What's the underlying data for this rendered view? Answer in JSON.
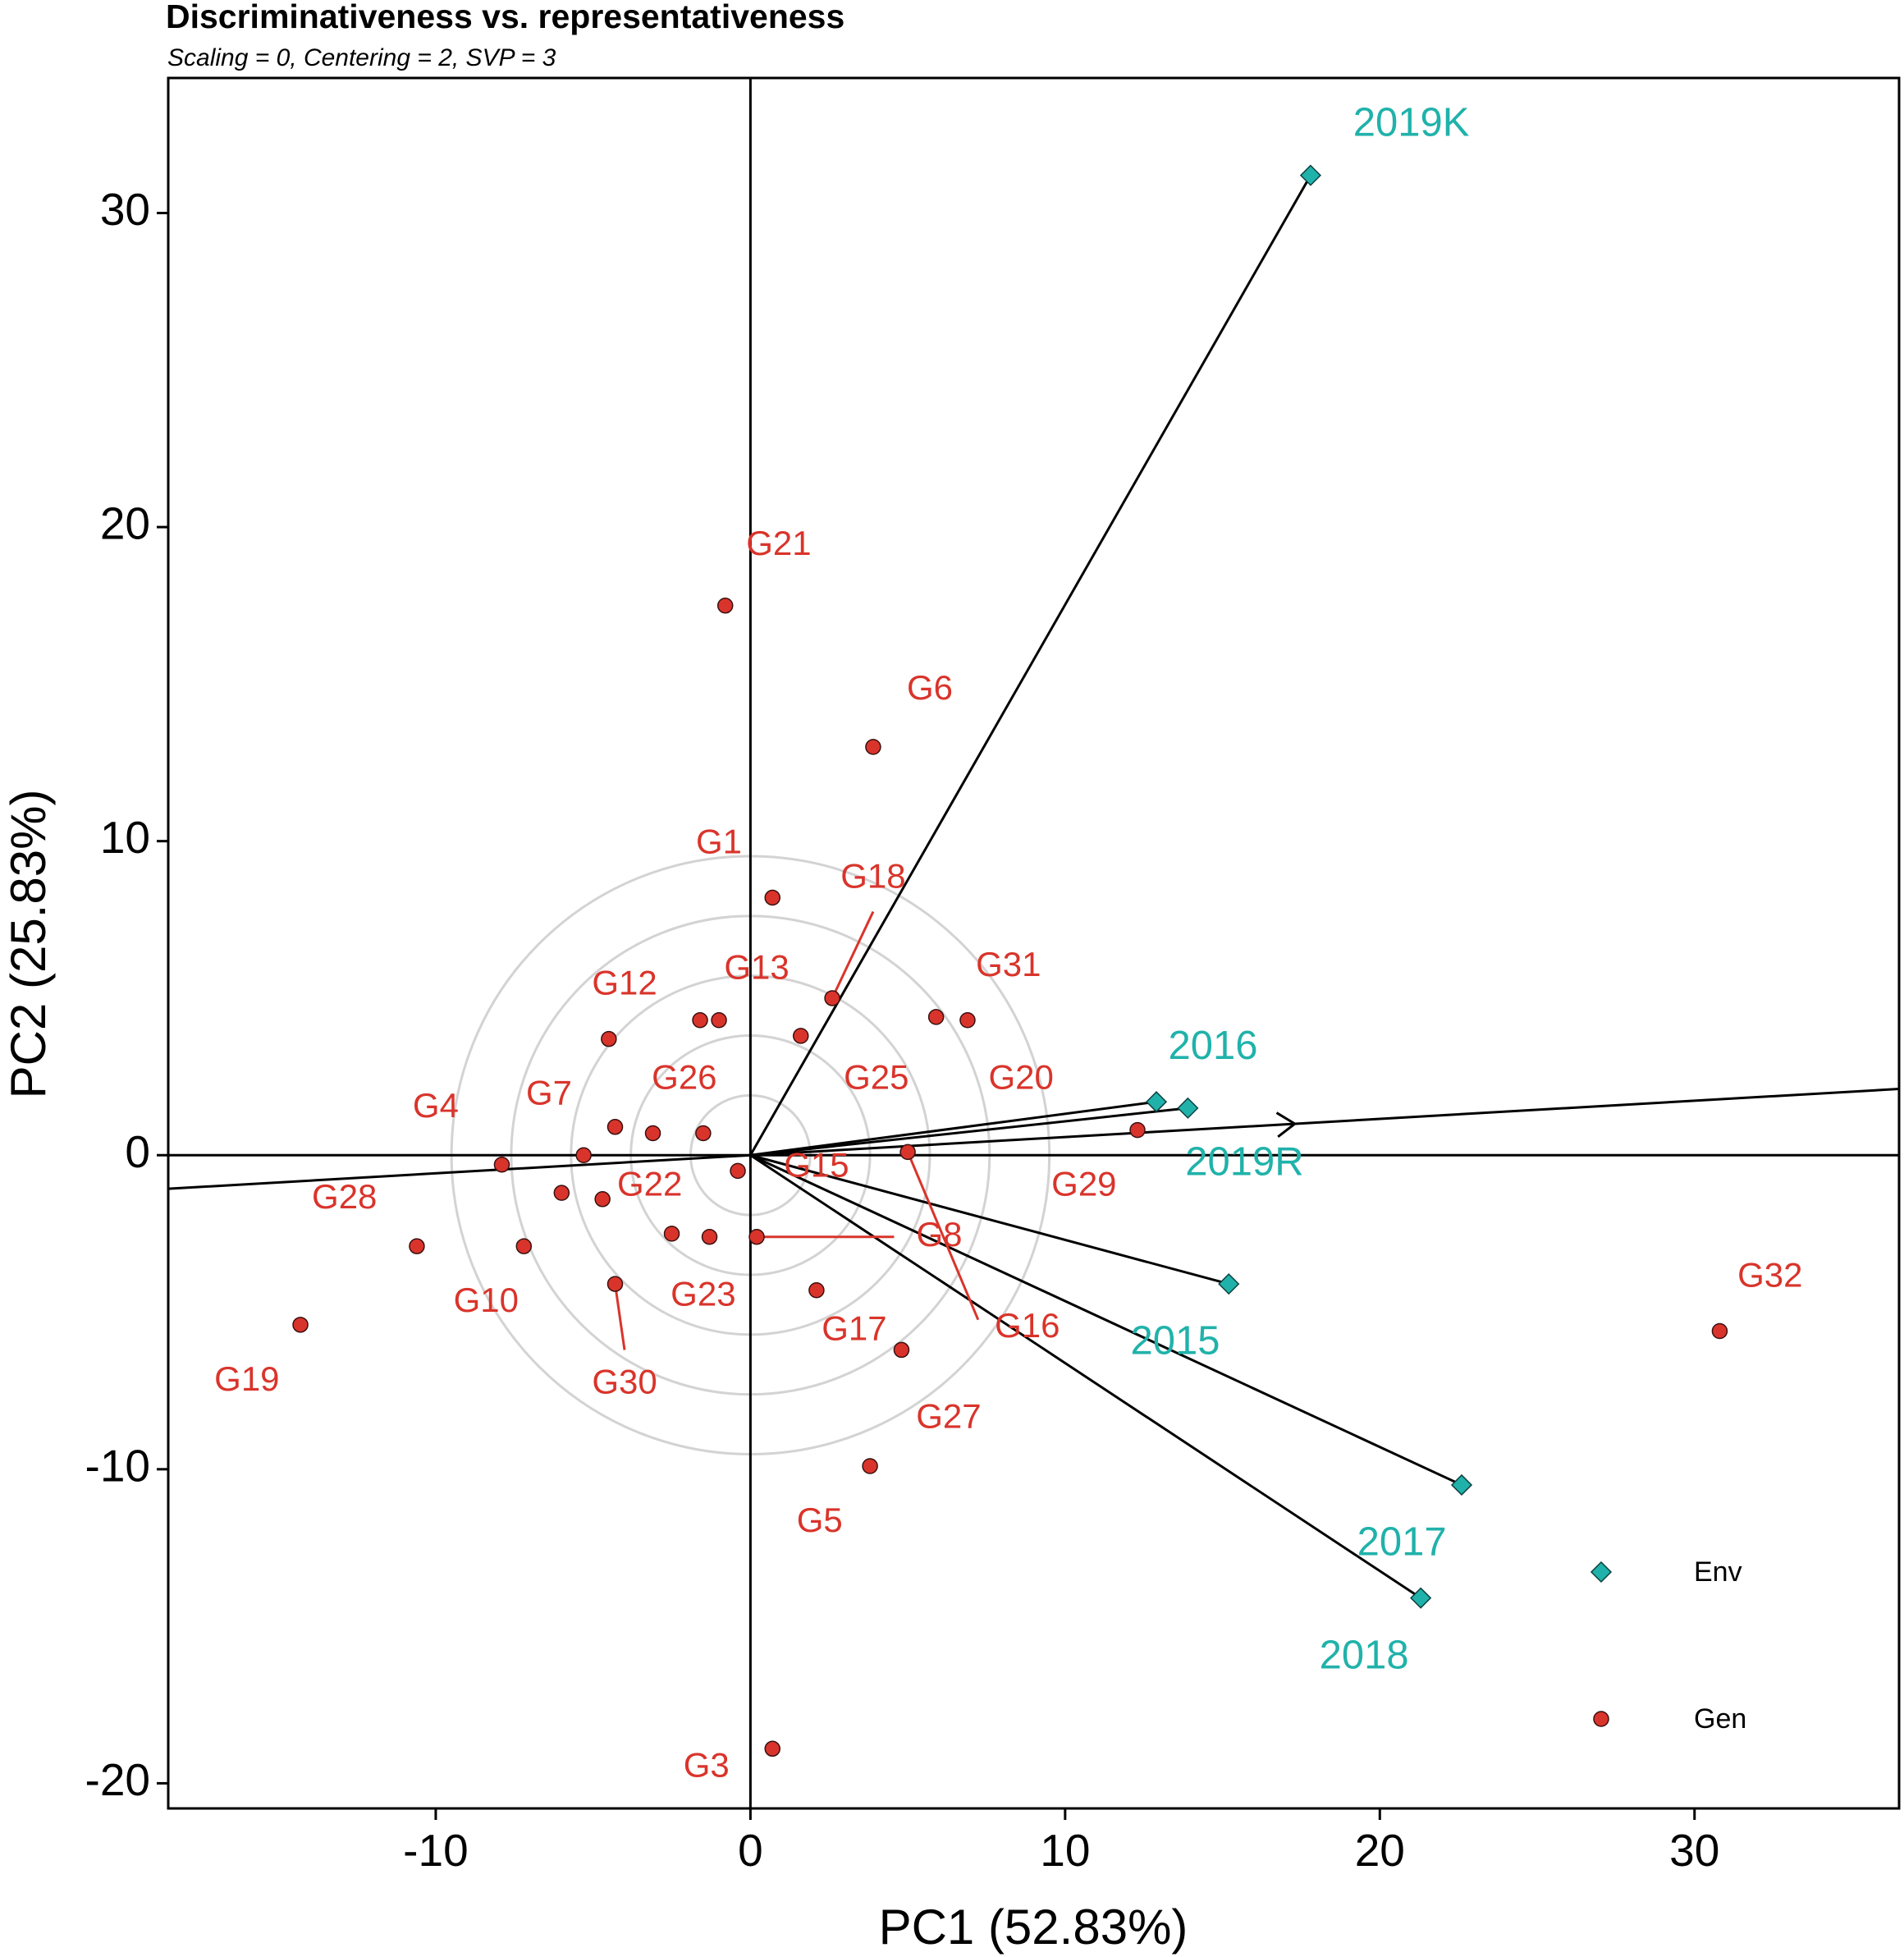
{
  "chart_data": {
    "type": "scatter",
    "title": "Discriminativeness vs. representativeness",
    "subtitle": "Scaling = 0, Centering = 2, SVP = 3",
    "xlabel": "PC1 (52.83%)",
    "ylabel": "PC2 (25.83%)",
    "xlim": [
      -18.5,
      36.5
    ],
    "ylim": [
      -20.8,
      34.3
    ],
    "xticks": [
      "-10",
      "0",
      "10",
      "20",
      "30"
    ],
    "xtick_values": [
      -10,
      0,
      10,
      20,
      30
    ],
    "yticks": [
      "-20",
      "-10",
      "0",
      "10",
      "20",
      "30"
    ],
    "ytick_values": [
      -20,
      -10,
      0,
      10,
      20,
      30
    ],
    "colors": {
      "env": "#20b2aa",
      "gen": "#d9342b",
      "axis": "#000000",
      "circle": "#d3d3d3",
      "frame": "#000000"
    },
    "average_environment_axis": {
      "direction": [
        17.3,
        1.0
      ]
    },
    "concentric_circles_radii": [
      1.9,
      3.8,
      5.7,
      7.6,
      9.5
    ],
    "series": [
      {
        "name": "Env",
        "marker": "diamond",
        "points": [
          {
            "label": "2019K",
            "x": 17.8,
            "y": 31.2,
            "lx": 21.0,
            "ly": 32.8
          },
          {
            "label": "2016",
            "x": 12.9,
            "y": 1.7,
            "lx": 14.7,
            "ly": 3.4
          },
          {
            "label": "2019R",
            "x": 13.9,
            "y": 1.5,
            "lx": 15.7,
            "ly": -0.3
          },
          {
            "label": "2015",
            "x": 15.2,
            "y": -4.1,
            "lx": 13.5,
            "ly": -6.0
          },
          {
            "label": "2017",
            "x": 22.6,
            "y": -10.5,
            "lx": 20.7,
            "ly": -12.4
          },
          {
            "label": "2018",
            "x": 21.3,
            "y": -14.1,
            "lx": 19.5,
            "ly": -16.0
          }
        ]
      },
      {
        "name": "Gen",
        "marker": "circle",
        "points": [
          {
            "label": "G21",
            "x": -0.8,
            "y": 17.5,
            "lx": 0.9,
            "ly": 19.4
          },
          {
            "label": "G6",
            "x": 3.9,
            "y": 13.0,
            "lx": 5.7,
            "ly": 14.8
          },
          {
            "label": "G1",
            "x": 0.7,
            "y": 8.2,
            "lx": -1.0,
            "ly": 9.9
          },
          {
            "label": "G18",
            "x": 2.6,
            "y": 5.0,
            "lx": 3.9,
            "ly": 8.8,
            "leader": true
          },
          {
            "label": "G13",
            "x": 1.6,
            "y": 3.8,
            "lx": 0.2,
            "ly": 5.9
          },
          {
            "label": "G12",
            "x": -4.5,
            "y": 3.7,
            "lx": -4.0,
            "ly": 5.4
          },
          {
            "label": "G31",
            "x": 5.9,
            "y": 4.4,
            "lx": 8.2,
            "ly": 6.0
          },
          {
            "label": "G20",
            "x": 6.9,
            "y": 4.3,
            "lx": 8.6,
            "ly": 2.4
          },
          {
            "label": "G25",
            "x": -1.0,
            "y": 4.3,
            "lx": 4.0,
            "ly": 2.4
          },
          {
            "label": "G26",
            "x": -1.6,
            "y": 4.3,
            "lx": -2.1,
            "ly": 2.4
          },
          {
            "label": "G4",
            "x": -7.9,
            "y": -0.3,
            "lx": -10.0,
            "ly": 1.5
          },
          {
            "label": "G7",
            "x": -5.3,
            "y": 0.0,
            "lx": -6.4,
            "ly": 1.9
          },
          {
            "label": "X1",
            "x": -4.3,
            "y": 0.9,
            "lx": -4.3,
            "ly": 0.9,
            "hidden": true
          },
          {
            "label": "X2",
            "x": -3.1,
            "y": 0.7,
            "lx": -3.1,
            "ly": 0.7,
            "hidden": true
          },
          {
            "label": "X3",
            "x": -1.5,
            "y": 0.7,
            "lx": -1.5,
            "ly": 0.7,
            "hidden": true
          },
          {
            "label": "G15",
            "x": -0.4,
            "y": -0.5,
            "lx": 2.1,
            "ly": -0.4
          },
          {
            "label": "G16",
            "x": 5.0,
            "y": 0.1,
            "lx": 8.8,
            "ly": -5.5,
            "leader": true
          },
          {
            "label": "G29",
            "x": 12.3,
            "y": 0.8,
            "lx": 10.6,
            "ly": -1.0
          },
          {
            "label": "G28",
            "x": -10.6,
            "y": -2.9,
            "lx": -12.9,
            "ly": -1.4
          },
          {
            "label": "G22",
            "x": -4.7,
            "y": -1.4,
            "lx": -3.2,
            "ly": -1.0
          },
          {
            "label": "X4",
            "x": -6.0,
            "y": -1.2,
            "lx": -6.0,
            "ly": -1.2,
            "hidden": true
          },
          {
            "label": "X5",
            "x": -2.5,
            "y": -2.5,
            "lx": -2.5,
            "ly": -2.5,
            "hidden": true
          },
          {
            "label": "X6",
            "x": -1.3,
            "y": -2.6,
            "lx": -1.3,
            "ly": -2.6,
            "hidden": true
          },
          {
            "label": "G8",
            "x": 0.2,
            "y": -2.6,
            "lx": 6.0,
            "ly": -2.6,
            "leader": true
          },
          {
            "label": "G10",
            "x": -7.2,
            "y": -2.9,
            "lx": -8.4,
            "ly": -4.7
          },
          {
            "label": "G23",
            "x": 2.1,
            "y": -4.3,
            "lx": -1.5,
            "ly": -4.5
          },
          {
            "label": "G30",
            "x": -4.3,
            "y": -4.1,
            "lx": -4.0,
            "ly": -7.3,
            "leader": true
          },
          {
            "label": "G17",
            "x": 4.8,
            "y": -6.2,
            "lx": 3.3,
            "ly": -5.6
          },
          {
            "label": "G19",
            "x": -14.3,
            "y": -5.4,
            "lx": -16.0,
            "ly": -7.2
          },
          {
            "label": "G27",
            "x": 3.8,
            "y": -9.9,
            "lx": 6.3,
            "ly": -8.4
          },
          {
            "label": "G5",
            "x": 3.8,
            "y": -9.9,
            "lx": 2.2,
            "ly": -11.7,
            "nodot": true
          },
          {
            "label": "G3",
            "x": 0.7,
            "y": -18.9,
            "lx": -1.4,
            "ly": -19.5
          },
          {
            "label": "G32",
            "x": 30.8,
            "y": -5.6,
            "lx": 32.4,
            "ly": -3.9
          }
        ]
      }
    ],
    "legend": {
      "position": "bottom-right",
      "entries": [
        "Env",
        "Gen"
      ]
    }
  }
}
